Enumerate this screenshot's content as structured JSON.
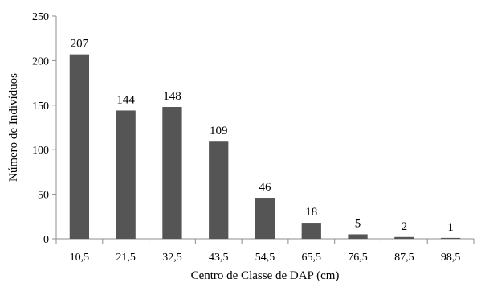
{
  "chart_data": {
    "type": "bar",
    "title": "",
    "xlabel": "Centro de Classe de DAP (cm)",
    "ylabel": "Número de Indivíduos",
    "categories": [
      "10,5",
      "21,5",
      "32,5",
      "43,5",
      "54,5",
      "65,5",
      "76,5",
      "87,5",
      "98,5"
    ],
    "values": [
      207,
      144,
      148,
      109,
      46,
      18,
      5,
      2,
      1
    ],
    "data_labels": [
      "207",
      "144",
      "148",
      "109",
      "46",
      "18",
      "5",
      "2",
      "1"
    ],
    "ylim": [
      0,
      250
    ],
    "yticks": [
      0,
      50,
      100,
      150,
      200,
      250
    ],
    "ytick_labels": [
      "0",
      "50",
      "100",
      "150",
      "200",
      "250"
    ],
    "grid": false,
    "legend": "none",
    "bar_color": "#555555",
    "axis_color": "#8c8c8c"
  }
}
